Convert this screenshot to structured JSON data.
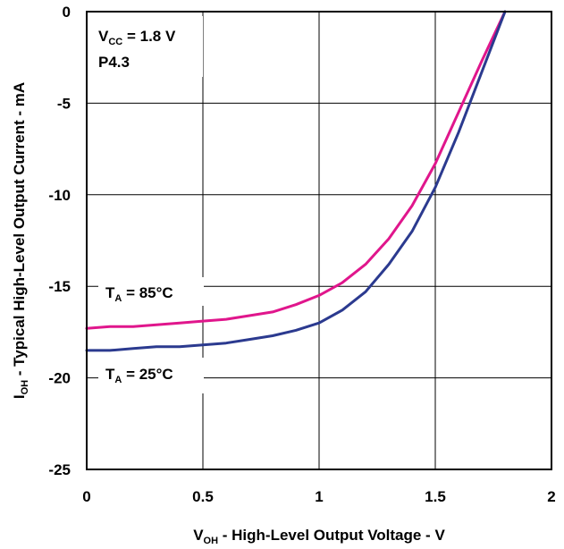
{
  "chart_data": {
    "type": "line",
    "xlabel": {
      "main": "V",
      "sub": "OH",
      "rest": " - High-Level Output Voltage - V"
    },
    "ylabel": {
      "main": "I",
      "sub": "OH",
      "rest": " - Typical High-Level Output Current - mA"
    },
    "xlim": [
      0,
      2
    ],
    "ylim": [
      -25,
      0
    ],
    "xticks": [
      0,
      0.5,
      1,
      1.5,
      2
    ],
    "xtick_labels": [
      "0",
      "0.5",
      "1",
      "1.5",
      "2"
    ],
    "yticks": [
      0,
      -5,
      -10,
      -15,
      -20,
      -25
    ],
    "ytick_labels": [
      "0",
      "-5",
      "-10",
      "-15",
      "-20",
      "-25"
    ],
    "grid": true,
    "annotations": {
      "vcc": {
        "main": "V",
        "sub": "CC",
        "rest": " = 1.8 V"
      },
      "pin": "P4.3",
      "t85": {
        "main": "T",
        "sub": "A",
        "rest": " = 85°C"
      },
      "t25": {
        "main": "T",
        "sub": "A",
        "rest": " = 25°C"
      }
    },
    "series": [
      {
        "name": "T_A = 85°C",
        "color": "#e0168c",
        "x": [
          0,
          0.1,
          0.2,
          0.3,
          0.4,
          0.5,
          0.6,
          0.7,
          0.8,
          0.9,
          1.0,
          1.1,
          1.2,
          1.3,
          1.4,
          1.5,
          1.6,
          1.7,
          1.8
        ],
        "y": [
          -17.3,
          -17.2,
          -17.2,
          -17.1,
          -17.0,
          -16.9,
          -16.8,
          -16.6,
          -16.4,
          -16.0,
          -15.5,
          -14.8,
          -13.8,
          -12.4,
          -10.6,
          -8.3,
          -5.5,
          -2.7,
          0.0
        ]
      },
      {
        "name": "T_A = 25°C",
        "color": "#2b3a8f",
        "x": [
          0,
          0.1,
          0.2,
          0.3,
          0.4,
          0.5,
          0.6,
          0.7,
          0.8,
          0.9,
          1.0,
          1.1,
          1.2,
          1.3,
          1.4,
          1.5,
          1.6,
          1.7,
          1.8
        ],
        "y": [
          -18.5,
          -18.5,
          -18.4,
          -18.3,
          -18.3,
          -18.2,
          -18.1,
          -17.9,
          -17.7,
          -17.4,
          -17.0,
          -16.3,
          -15.3,
          -13.8,
          -12.0,
          -9.6,
          -6.6,
          -3.3,
          0.0
        ]
      }
    ]
  }
}
